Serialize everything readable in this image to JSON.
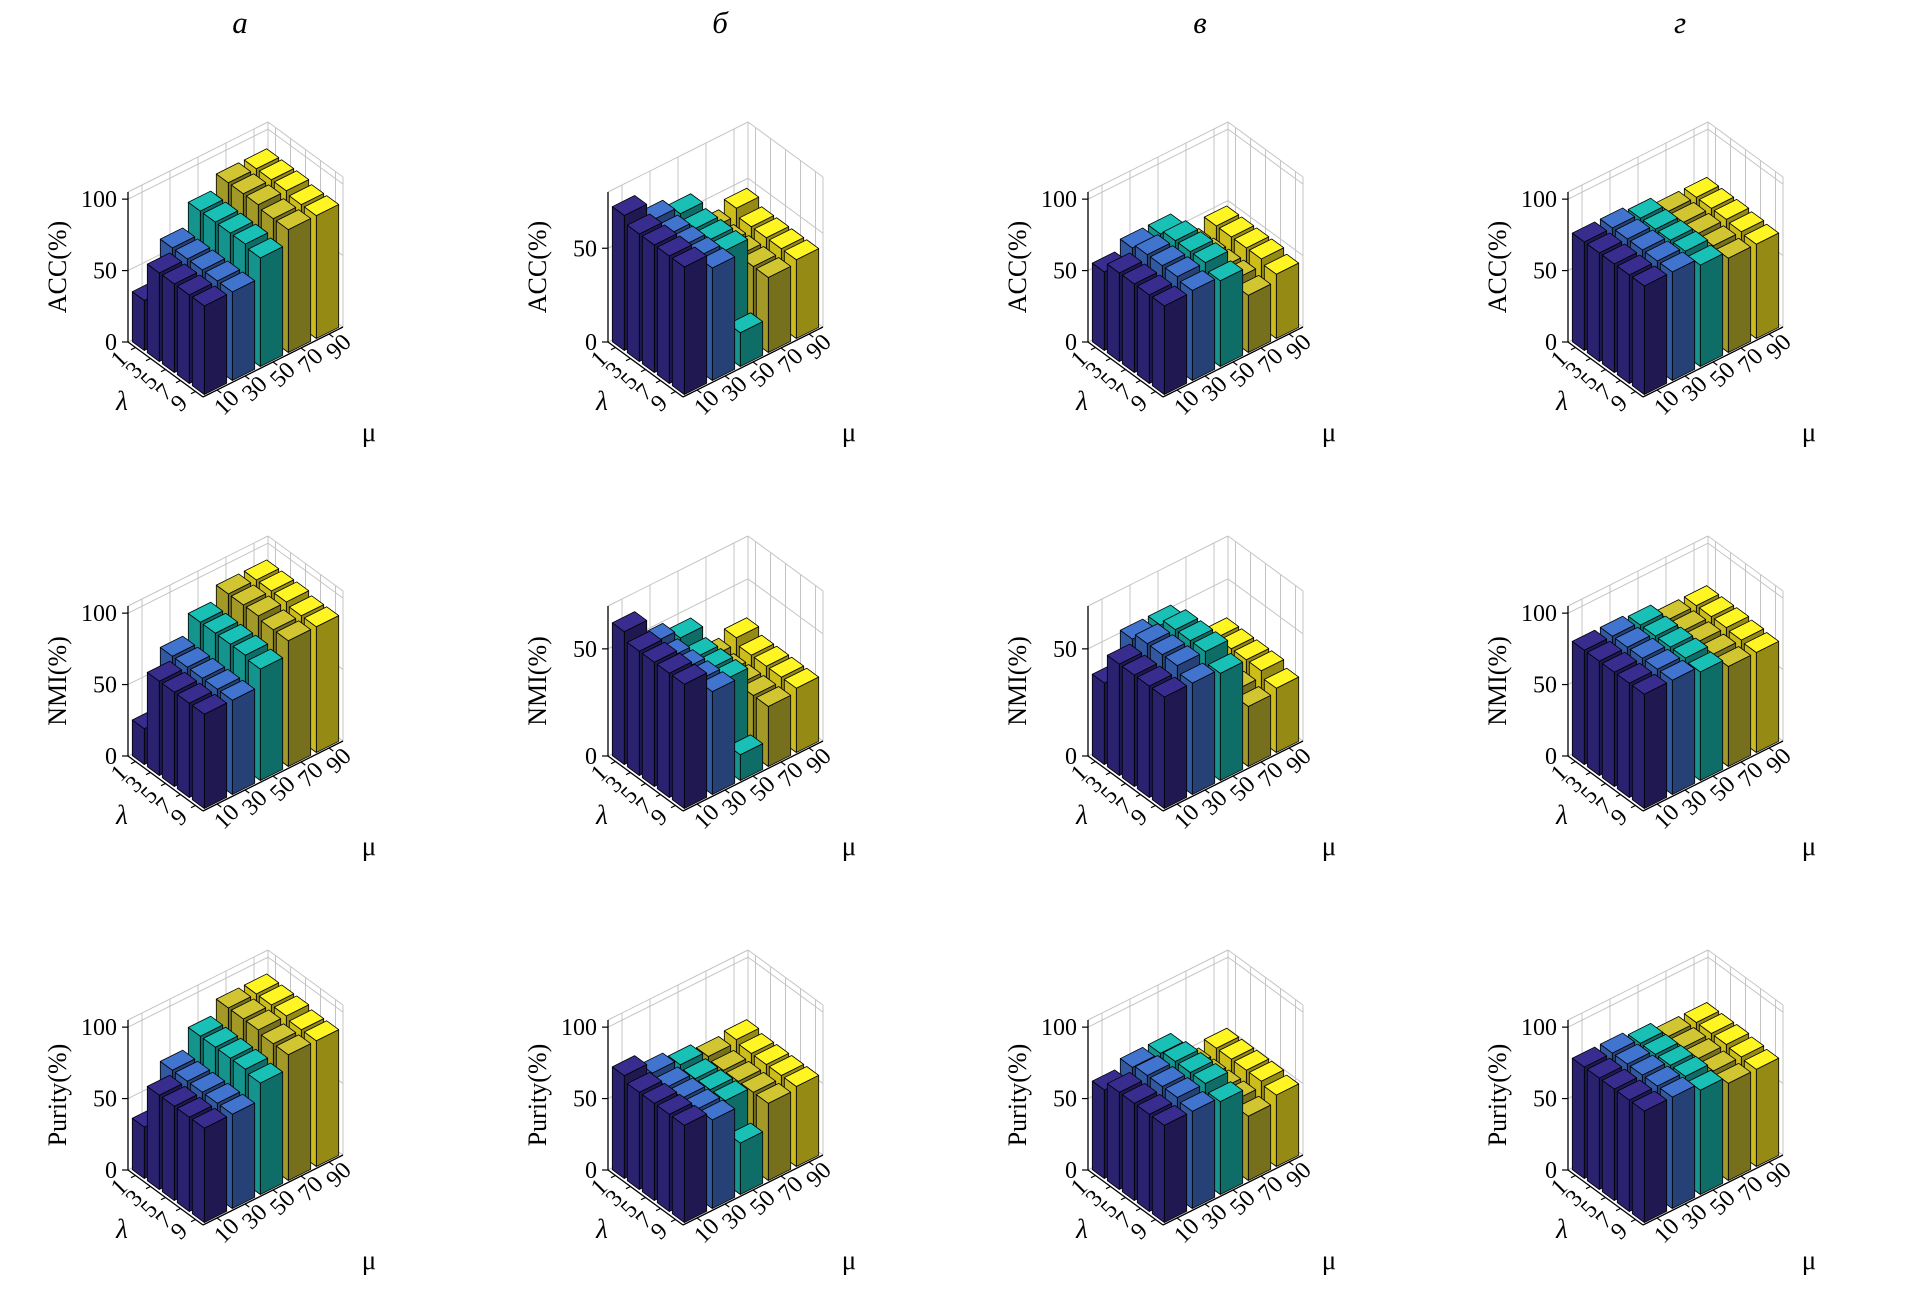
{
  "columns": [
    "а",
    "б",
    "в",
    "г"
  ],
  "rows": [
    "ACC(%)",
    "NMI(%)",
    "Purity(%)"
  ],
  "axes": {
    "xlabel": "λ",
    "ylabel": "μ",
    "lambda_ticks": [
      "1",
      "3",
      "5",
      "7",
      "9"
    ],
    "mu_ticks": [
      "10",
      "30",
      "50",
      "70",
      "90"
    ]
  },
  "colors": {
    "mu_series": [
      "#352a87",
      "#3d6dc3",
      "#18b5ab",
      "#c5bb2e",
      "#f9e721"
    ],
    "grid": "#c4c4c4",
    "axis": "#000000"
  },
  "chart_data": [
    {
      "id": "acc-a",
      "type": "bar",
      "row": "ACC(%)",
      "column": "а",
      "zticks": [
        0,
        50,
        100
      ],
      "zlim": 105,
      "lambda": [
        1,
        3,
        5,
        7,
        9
      ],
      "mu": [
        10,
        30,
        50,
        70,
        90
      ],
      "values_layout": "rows = mu 10..90, cols = lambda 1..9",
      "values": [
        [
          35,
          62,
          62,
          62,
          62
        ],
        [
          62,
          62,
          62,
          62,
          62
        ],
        [
          78,
          78,
          78,
          78,
          76
        ],
        [
          88,
          88,
          88,
          86,
          86
        ],
        [
          88,
          88,
          88,
          86,
          86
        ]
      ]
    },
    {
      "id": "acc-b",
      "type": "bar",
      "row": "ACC(%)",
      "column": "б",
      "zticks": [
        0,
        50
      ],
      "zlim": 80,
      "lambda": [
        1,
        3,
        5,
        7,
        9
      ],
      "mu": [
        10,
        30,
        50,
        70,
        90
      ],
      "values_layout": "rows = mu 10..90, cols = lambda 1..9",
      "values": [
        [
          72,
          68,
          68,
          68,
          68
        ],
        [
          62,
          60,
          60,
          60,
          60
        ],
        [
          58,
          56,
          56,
          56,
          18
        ],
        [
          42,
          40,
          40,
          40,
          40
        ],
        [
          46,
          42,
          42,
          42,
          42
        ]
      ]
    },
    {
      "id": "acc-v",
      "type": "bar",
      "row": "ACC(%)",
      "column": "в",
      "zticks": [
        0,
        50,
        100
      ],
      "zlim": 105,
      "lambda": [
        1,
        3,
        5,
        7,
        9
      ],
      "mu": [
        10,
        30,
        50,
        70,
        90
      ],
      "values_layout": "rows = mu 10..90, cols = lambda 1..9",
      "values": [
        [
          55,
          62,
          62,
          62,
          62
        ],
        [
          62,
          65,
          65,
          65,
          63
        ],
        [
          62,
          65,
          65,
          65,
          60
        ],
        [
          42,
          43,
          43,
          43,
          40
        ],
        [
          48,
          48,
          48,
          48,
          45
        ]
      ]
    },
    {
      "id": "acc-g",
      "type": "bar",
      "row": "ACC(%)",
      "column": "г",
      "zticks": [
        0,
        50,
        100
      ],
      "zlim": 105,
      "lambda": [
        1,
        3,
        5,
        7,
        9
      ],
      "mu": [
        10,
        30,
        50,
        70,
        90
      ],
      "values_layout": "rows = mu 10..90, cols = lambda 1..9",
      "values": [
        [
          76,
          76,
          76,
          76,
          76
        ],
        [
          76,
          76,
          76,
          76,
          76
        ],
        [
          73,
          73,
          73,
          73,
          71
        ],
        [
          68,
          68,
          68,
          67,
          66
        ],
        [
          68,
          68,
          68,
          67,
          66
        ]
      ]
    },
    {
      "id": "nmi-a",
      "type": "bar",
      "row": "NMI(%)",
      "column": "а",
      "zticks": [
        0,
        50,
        100
      ],
      "zlim": 105,
      "lambda": [
        1,
        3,
        5,
        7,
        9
      ],
      "mu": [
        10,
        30,
        50,
        70,
        90
      ],
      "values_layout": "rows = mu 10..90, cols = lambda 1..9",
      "values": [
        [
          25,
          66,
          66,
          66,
          66
        ],
        [
          66,
          66,
          66,
          66,
          66
        ],
        [
          80,
          80,
          80,
          80,
          78
        ],
        [
          90,
          90,
          90,
          88,
          88
        ],
        [
          90,
          90,
          90,
          88,
          88
        ]
      ]
    },
    {
      "id": "nmi-b",
      "type": "bar",
      "row": "NMI(%)",
      "column": "б",
      "zticks": [
        0,
        50
      ],
      "zlim": 70,
      "lambda": [
        1,
        3,
        5,
        7,
        9
      ],
      "mu": [
        10,
        30,
        50,
        70,
        90
      ],
      "values_layout": "rows = mu 10..90, cols = lambda 1..9",
      "values": [
        [
          62,
          58,
          58,
          58,
          58
        ],
        [
          50,
          48,
          48,
          48,
          48
        ],
        [
          46,
          42,
          42,
          42,
          12
        ],
        [
          30,
          28,
          28,
          28,
          28
        ],
        [
          33,
          30,
          30,
          30,
          30
        ]
      ]
    },
    {
      "id": "nmi-v",
      "type": "bar",
      "row": "NMI(%)",
      "column": "в",
      "zticks": [
        0,
        50
      ],
      "zlim": 70,
      "lambda": [
        1,
        3,
        5,
        7,
        9
      ],
      "mu": [
        10,
        30,
        50,
        70,
        90
      ],
      "values_layout": "rows = mu 10..90, cols = lambda 1..9",
      "values": [
        [
          38,
          52,
          52,
          52,
          52
        ],
        [
          52,
          55,
          55,
          55,
          52
        ],
        [
          52,
          55,
          55,
          55,
          50
        ],
        [
          30,
          30,
          30,
          30,
          28
        ],
        [
          33,
          33,
          33,
          33,
          30
        ]
      ]
    },
    {
      "id": "nmi-g",
      "type": "bar",
      "row": "NMI(%)",
      "column": "г",
      "zticks": [
        0,
        50,
        100
      ],
      "zlim": 105,
      "lambda": [
        1,
        3,
        5,
        7,
        9
      ],
      "mu": [
        10,
        30,
        50,
        70,
        90
      ],
      "values_layout": "rows = mu 10..90, cols = lambda 1..9",
      "values": [
        [
          80,
          80,
          80,
          80,
          80
        ],
        [
          80,
          80,
          80,
          80,
          80
        ],
        [
          78,
          78,
          78,
          78,
          76
        ],
        [
          72,
          72,
          72,
          71,
          70
        ],
        [
          72,
          72,
          72,
          71,
          70
        ]
      ]
    },
    {
      "id": "purity-a",
      "type": "bar",
      "row": "Purity(%)",
      "column": "а",
      "zticks": [
        0,
        50,
        100
      ],
      "zlim": 105,
      "lambda": [
        1,
        3,
        5,
        7,
        9
      ],
      "mu": [
        10,
        30,
        50,
        70,
        90
      ],
      "values_layout": "rows = mu 10..90, cols = lambda 1..9",
      "values": [
        [
          36,
          66,
          66,
          66,
          66
        ],
        [
          66,
          66,
          66,
          66,
          66
        ],
        [
          80,
          80,
          80,
          80,
          78
        ],
        [
          90,
          90,
          90,
          88,
          88
        ],
        [
          90,
          90,
          90,
          88,
          88
        ]
      ]
    },
    {
      "id": "purity-b",
      "type": "bar",
      "row": "Purity(%)",
      "column": "б",
      "zticks": [
        0,
        50,
        100
      ],
      "zlim": 105,
      "lambda": [
        1,
        3,
        5,
        7,
        9
      ],
      "mu": [
        10,
        30,
        50,
        70,
        90
      ],
      "values_layout": "rows = mu 10..90, cols = lambda 1..9",
      "values": [
        [
          72,
          68,
          68,
          68,
          68
        ],
        [
          64,
          62,
          62,
          62,
          62
        ],
        [
          60,
          58,
          58,
          58,
          36
        ],
        [
          56,
          54,
          54,
          54,
          54
        ],
        [
          58,
          56,
          56,
          56,
          56
        ]
      ]
    },
    {
      "id": "purity-v",
      "type": "bar",
      "row": "Purity(%)",
      "column": "в",
      "zticks": [
        0,
        50,
        100
      ],
      "zlim": 105,
      "lambda": [
        1,
        3,
        5,
        7,
        9
      ],
      "mu": [
        10,
        30,
        50,
        70,
        90
      ],
      "values_layout": "rows = mu 10..90, cols = lambda 1..9",
      "values": [
        [
          62,
          68,
          68,
          68,
          68
        ],
        [
          68,
          70,
          70,
          70,
          68
        ],
        [
          68,
          70,
          70,
          70,
          65
        ],
        [
          48,
          48,
          48,
          48,
          45
        ],
        [
          52,
          52,
          52,
          52,
          50
        ]
      ]
    },
    {
      "id": "purity-g",
      "type": "bar",
      "row": "Purity(%)",
      "column": "г",
      "zticks": [
        0,
        50,
        100
      ],
      "zlim": 105,
      "lambda": [
        1,
        3,
        5,
        7,
        9
      ],
      "mu": [
        10,
        30,
        50,
        70,
        90
      ],
      "values_layout": "rows = mu 10..90, cols = lambda 1..9",
      "values": [
        [
          78,
          78,
          78,
          78,
          78
        ],
        [
          78,
          78,
          78,
          78,
          78
        ],
        [
          75,
          75,
          75,
          75,
          73
        ],
        [
          70,
          70,
          70,
          69,
          68
        ],
        [
          70,
          70,
          70,
          69,
          68
        ]
      ]
    }
  ]
}
